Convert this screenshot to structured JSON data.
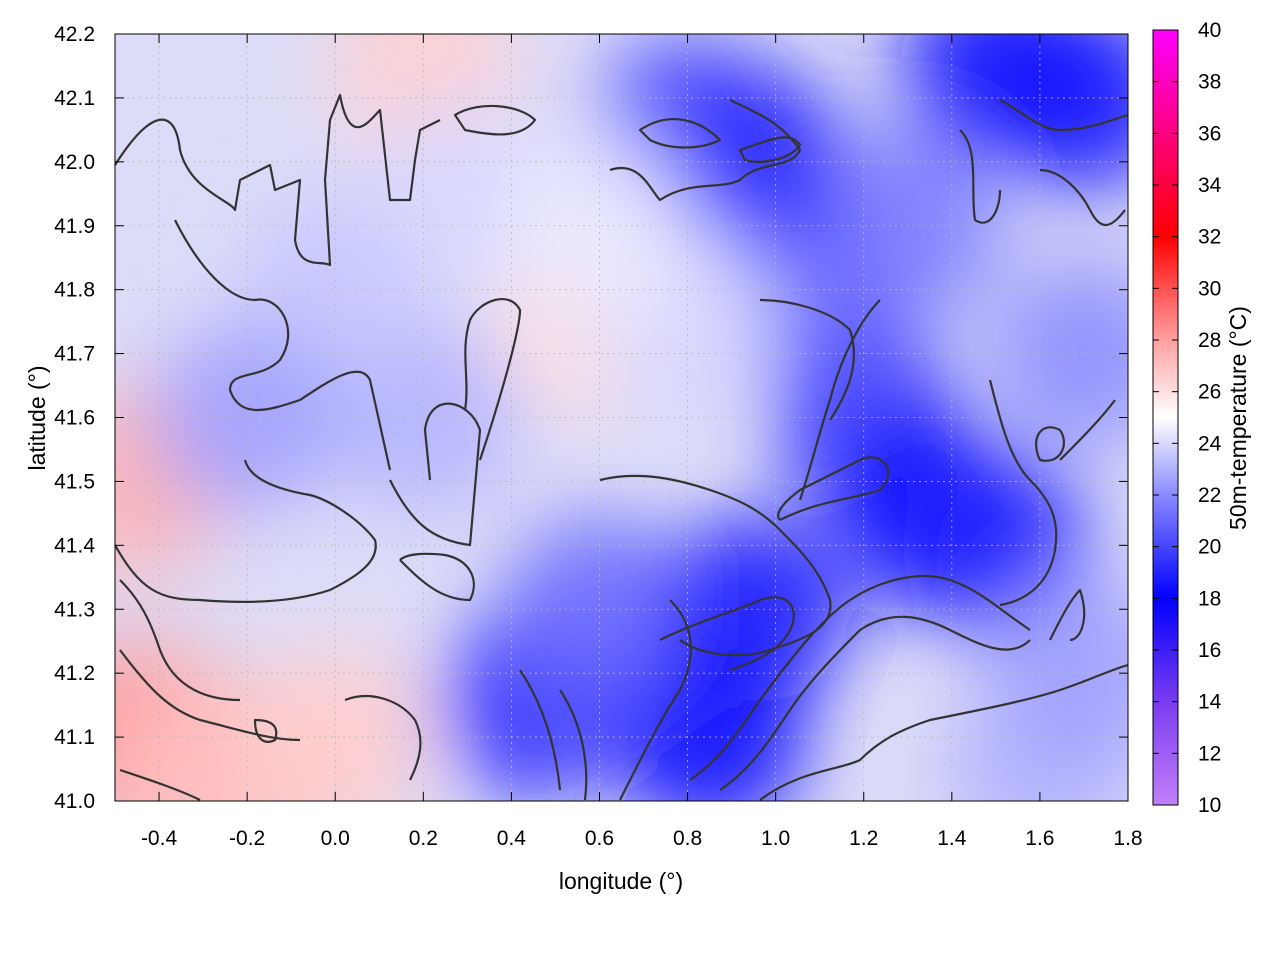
{
  "chart_data": {
    "type": "heatmap",
    "xlabel": "longitude (°)",
    "ylabel": "latitude (°)",
    "colorbar_label": "50m-temperature (°C)",
    "xlim": [
      -0.5,
      1.8
    ],
    "ylim": [
      41.0,
      42.2
    ],
    "x_ticks": [
      "-0.4",
      "-0.2",
      "0.0",
      "0.2",
      "0.4",
      "0.6",
      "0.8",
      "1.0",
      "1.2",
      "1.4",
      "1.6",
      "1.8"
    ],
    "y_ticks": [
      "41.0",
      "41.1",
      "41.2",
      "41.3",
      "41.4",
      "41.5",
      "41.6",
      "41.7",
      "41.8",
      "41.9",
      "42.0",
      "42.1",
      "42.2"
    ],
    "colorbar": {
      "range": [
        10,
        40
      ],
      "ticks": [
        "10",
        "12",
        "14",
        "16",
        "18",
        "20",
        "22",
        "24",
        "26",
        "28",
        "30",
        "32",
        "34",
        "36",
        "38",
        "40"
      ],
      "colors": [
        {
          "value": 10,
          "color": "#c080f8"
        },
        {
          "value": 14,
          "color": "#7a3cf0"
        },
        {
          "value": 18,
          "color": "#0000ff"
        },
        {
          "value": 22,
          "color": "#8a8aff"
        },
        {
          "value": 25,
          "color": "#ffffff"
        },
        {
          "value": 28,
          "color": "#ffa0a0"
        },
        {
          "value": 32,
          "color": "#ff0000"
        },
        {
          "value": 36,
          "color": "#ff0080"
        },
        {
          "value": 40,
          "color": "#ff00ff"
        }
      ]
    },
    "grid": true,
    "approx_field": {
      "description_levels": "temperature values at sample points in data units",
      "points": [
        {
          "lon": -0.48,
          "lat": 41.1,
          "t": 28.5
        },
        {
          "lon": -0.45,
          "lat": 41.5,
          "t": 27.5
        },
        {
          "lon": -0.4,
          "lat": 41.1,
          "t": 28
        },
        {
          "lon": -0.3,
          "lat": 41.05,
          "t": 27
        },
        {
          "lon": -0.1,
          "lat": 41.05,
          "t": 27
        },
        {
          "lon": 0.0,
          "lat": 41.1,
          "t": 26.5
        },
        {
          "lon": 0.2,
          "lat": 42.15,
          "t": 26.5
        },
        {
          "lon": 0.55,
          "lat": 41.75,
          "t": 26
        },
        {
          "lon": 0.2,
          "lat": 41.6,
          "t": 23
        },
        {
          "lon": 0.0,
          "lat": 41.8,
          "t": 23.5
        },
        {
          "lon": -0.2,
          "lat": 41.6,
          "t": 22.5
        },
        {
          "lon": 0.45,
          "lat": 41.15,
          "t": 19
        },
        {
          "lon": 0.6,
          "lat": 41.3,
          "t": 21
        },
        {
          "lon": 0.85,
          "lat": 41.1,
          "t": 18
        },
        {
          "lon": 0.95,
          "lat": 41.3,
          "t": 18.5
        },
        {
          "lon": 1.2,
          "lat": 41.6,
          "t": 19.5
        },
        {
          "lon": 1.35,
          "lat": 41.45,
          "t": 18
        },
        {
          "lon": 1.5,
          "lat": 41.4,
          "t": 19
        },
        {
          "lon": 1.1,
          "lat": 41.8,
          "t": 20.5
        },
        {
          "lon": 1.3,
          "lat": 41.9,
          "t": 21.5
        },
        {
          "lon": 0.8,
          "lat": 42.05,
          "t": 20
        },
        {
          "lon": 0.95,
          "lat": 42.0,
          "t": 19
        },
        {
          "lon": 1.5,
          "lat": 42.15,
          "t": 17.5
        },
        {
          "lon": 1.7,
          "lat": 42.1,
          "t": 18.5
        },
        {
          "lon": 1.6,
          "lat": 41.05,
          "t": 23
        },
        {
          "lon": 1.7,
          "lat": 41.2,
          "t": 22.5
        },
        {
          "lon": 1.7,
          "lat": 41.7,
          "t": 22
        },
        {
          "lon": 0.8,
          "lat": 41.75,
          "t": 24
        },
        {
          "lon": 0.3,
          "lat": 41.95,
          "t": 24
        },
        {
          "lon": 0.6,
          "lat": 41.9,
          "t": 24.5
        }
      ]
    }
  }
}
